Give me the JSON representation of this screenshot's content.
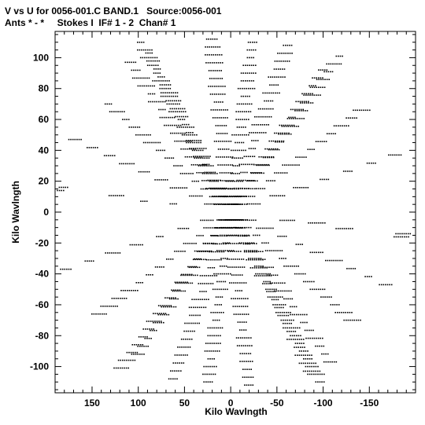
{
  "header": {
    "title_line1": "V vs U for 0056-001.C BAND.1   Source:0056-001",
    "title_line2": "Ants * - *     Stokes I  IF# 1 - 2  Chan# 1"
  },
  "chart_data": {
    "type": "scatter",
    "title": "V vs U for 0056-001.C BAND.1   Source:0056-001",
    "subtitle": "Ants * - *     Stokes I  IF# 1 - 2  Chan# 1",
    "xlabel": "Kilo Wavlngth",
    "ylabel": "Kilo Wavlngth",
    "xlim": [
      190,
      -200
    ],
    "ylim": [
      -117,
      117
    ],
    "x_direction": "reversed",
    "x_ticks": [
      150,
      100,
      50,
      0,
      -50,
      -100,
      -150
    ],
    "x_tick_labels": [
      "150",
      "100",
      "50",
      "0",
      "-50",
      "-100",
      "-150"
    ],
    "y_ticks": [
      100,
      80,
      60,
      40,
      20,
      0,
      -20,
      -40,
      -60,
      -80,
      -100
    ],
    "y_tick_labels": [
      "100",
      "80",
      "60",
      "40",
      "20",
      "0",
      "-20",
      "-40",
      "-60",
      "-80",
      "-100"
    ],
    "grid": false,
    "marker": "dot",
    "marker_color": "#000000",
    "radial_spokes": [
      {
        "name": "",
        "u_end": 97,
        "v_end": 110
      },
      {
        "name": "",
        "u_end": -118,
        "v_end": 101
      },
      {
        "name": "",
        "u_end": 88,
        "v_end": 103
      },
      {
        "name": "",
        "u_end": -62,
        "v_end": 108
      },
      {
        "name": "",
        "u_end": 168,
        "v_end": 47
      },
      {
        "name": "",
        "u_end": -178,
        "v_end": 37
      },
      {
        "name": "",
        "u_end": 185,
        "v_end": 16
      },
      {
        "name": "",
        "u_end": -187,
        "v_end": -14
      },
      {
        "name": "",
        "u_end": 132,
        "v_end": 70
      },
      {
        "name": "",
        "u_end": -142,
        "v_end": 66
      },
      {
        "name": "",
        "u_end": 20,
        "v_end": 112
      },
      {
        "name": "",
        "u_end": -24,
        "v_end": 110
      },
      {
        "name": "",
        "u_end": 108,
        "v_end": 97
      },
      {
        "name": "",
        "u_end": -100,
        "v_end": 92
      }
    ],
    "track_spacing_v": 5
  }
}
